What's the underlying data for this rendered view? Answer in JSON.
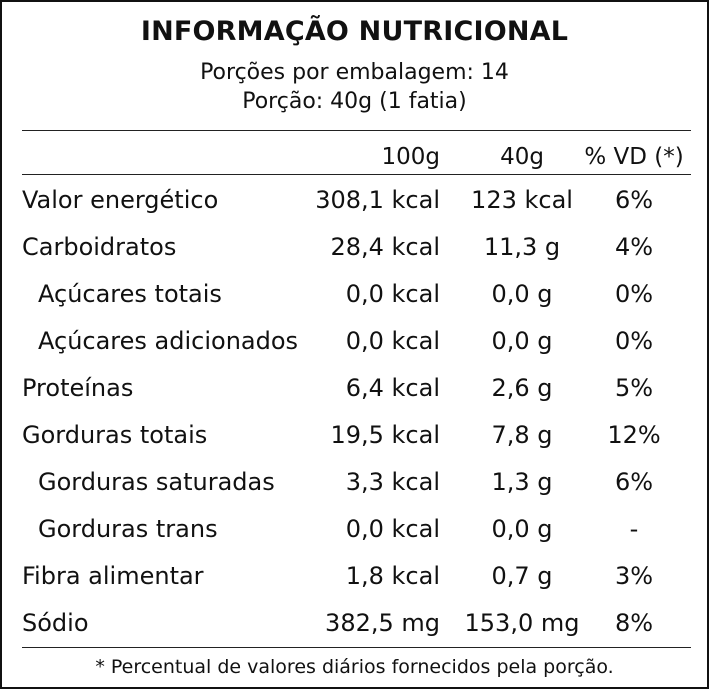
{
  "label": {
    "title": "INFORMAÇÃO NUTRICIONAL",
    "servings_per_package": "Porções por embalagem: 14",
    "serving_size": "Porção: 40g (1 fatia)",
    "columns": [
      "100g",
      "40g",
      "% VD (*)"
    ],
    "rows": [
      {
        "name": "Valor energético",
        "per_100g": "308,1 kcal",
        "per_serving": "123 kcal",
        "dv": "6%",
        "indent": false
      },
      {
        "name": "Carboidratos",
        "per_100g": "28,4 kcal",
        "per_serving": "11,3 g",
        "dv": "4%",
        "indent": false
      },
      {
        "name": "Açúcares totais",
        "per_100g": "0,0 kcal",
        "per_serving": "0,0 g",
        "dv": "0%",
        "indent": true
      },
      {
        "name": "Açúcares adicionados",
        "per_100g": "0,0 kcal",
        "per_serving": "0,0 g",
        "dv": "0%",
        "indent": true
      },
      {
        "name": "Proteínas",
        "per_100g": "6,4 kcal",
        "per_serving": "2,6 g",
        "dv": "5%",
        "indent": false
      },
      {
        "name": "Gorduras totais",
        "per_100g": "19,5 kcal",
        "per_serving": "7,8 g",
        "dv": "12%",
        "indent": false
      },
      {
        "name": "Gorduras saturadas",
        "per_100g": "3,3 kcal",
        "per_serving": "1,3 g",
        "dv": "6%",
        "indent": true
      },
      {
        "name": "Gorduras trans",
        "per_100g": "0,0 kcal",
        "per_serving": "0,0 g",
        "dv": "-",
        "indent": true
      },
      {
        "name": "Fibra alimentar",
        "per_100g": "1,8 kcal",
        "per_serving": "0,7 g",
        "dv": "3%",
        "indent": false
      },
      {
        "name": "Sódio",
        "per_100g": "382,5 mg",
        "per_serving": "153,0 mg",
        "dv": "8%",
        "indent": false
      }
    ],
    "footnote": "* Percentual de valores diários fornecidos pela porção."
  }
}
